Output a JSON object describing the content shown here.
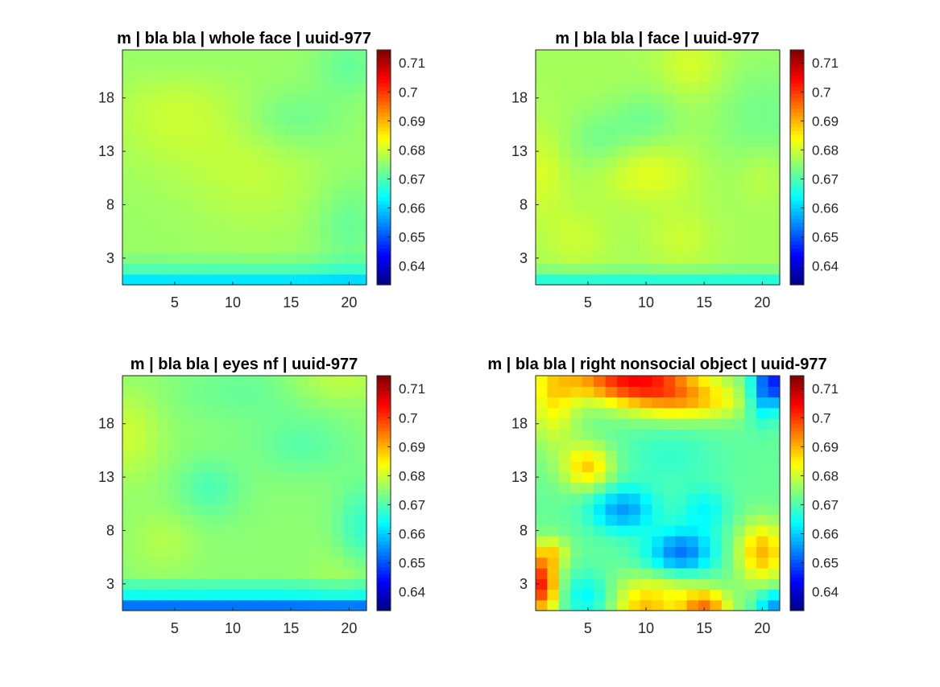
{
  "chart_data": [
    {
      "type": "heatmap",
      "title": "m | bla bla | whole face | uuid-977",
      "x": [
        1,
        21
      ],
      "y": [
        1,
        22
      ],
      "xticks": [
        5,
        10,
        15,
        20
      ],
      "yticks": [
        3,
        8,
        13,
        18
      ],
      "clim": [
        0.6335,
        0.7145
      ],
      "colorbar_ticks": [
        0.64,
        0.65,
        0.66,
        0.67,
        0.68,
        0.69,
        0.7,
        0.71
      ],
      "colormap": "jet",
      "field": {
        "base": 0.676,
        "bumps": [
          {
            "x": 5,
            "y": 17,
            "sx": 4,
            "sy": 4,
            "a": 0.004
          },
          {
            "x": 12,
            "y": 11,
            "sx": 4,
            "sy": 4,
            "a": 0.003
          },
          {
            "x": 15,
            "y": 16,
            "sx": 3,
            "sy": 2,
            "a": -0.004
          },
          {
            "x": 20,
            "y": 21,
            "sx": 2,
            "sy": 2,
            "a": -0.004
          },
          {
            "x": 20,
            "y": 6,
            "sx": 2,
            "sy": 3,
            "a": -0.004
          },
          {
            "x": 5,
            "y": 21,
            "sx": 4,
            "sy": 2,
            "a": -0.002
          }
        ],
        "row_offsets": [
          {
            "y": 1,
            "v": -0.014
          },
          {
            "y": 2,
            "v": -0.006
          },
          {
            "y": 3,
            "v": -0.002
          }
        ]
      }
    },
    {
      "type": "heatmap",
      "title": "m | bla bla | face | uuid-977",
      "x": [
        1,
        21
      ],
      "y": [
        1,
        22
      ],
      "xticks": [
        5,
        10,
        15,
        20
      ],
      "yticks": [
        3,
        8,
        13,
        18
      ],
      "clim": [
        0.6335,
        0.7145
      ],
      "colorbar_ticks": [
        0.64,
        0.65,
        0.66,
        0.67,
        0.68,
        0.69,
        0.7,
        0.71
      ],
      "colormap": "jet",
      "field": {
        "base": 0.677,
        "bumps": [
          {
            "x": 10,
            "y": 11,
            "sx": 3,
            "sy": 2,
            "a": 0.005
          },
          {
            "x": 1,
            "y": 11,
            "sx": 1.5,
            "sy": 3,
            "a": 0.004
          },
          {
            "x": 6,
            "y": 14,
            "sx": 2,
            "sy": 2,
            "a": -0.004
          },
          {
            "x": 10,
            "y": 16,
            "sx": 2,
            "sy": 2,
            "a": -0.004
          },
          {
            "x": 14,
            "y": 21,
            "sx": 2,
            "sy": 2,
            "a": 0.004
          },
          {
            "x": 20,
            "y": 16,
            "sx": 3,
            "sy": 4,
            "a": -0.004
          },
          {
            "x": 4,
            "y": 5,
            "sx": 2,
            "sy": 2,
            "a": 0.003
          },
          {
            "x": 13,
            "y": 5,
            "sx": 2,
            "sy": 2,
            "a": 0.003
          },
          {
            "x": 20,
            "y": 11,
            "sx": 1.5,
            "sy": 2,
            "a": 0.003
          }
        ],
        "row_offsets": [
          {
            "y": 1,
            "v": -0.01
          },
          {
            "y": 2,
            "v": -0.003
          }
        ]
      }
    },
    {
      "type": "heatmap",
      "title": "m | bla bla | eyes nf | uuid-977",
      "x": [
        1,
        21
      ],
      "y": [
        1,
        22
      ],
      "xticks": [
        5,
        10,
        15,
        20
      ],
      "yticks": [
        3,
        8,
        13,
        18
      ],
      "clim": [
        0.6335,
        0.7145
      ],
      "colorbar_ticks": [
        0.64,
        0.65,
        0.66,
        0.67,
        0.68,
        0.69,
        0.7,
        0.71
      ],
      "colormap": "jet",
      "field": {
        "base": 0.675,
        "bumps": [
          {
            "x": 1,
            "y": 17,
            "sx": 2,
            "sy": 3,
            "a": 0.005
          },
          {
            "x": 8,
            "y": 12,
            "sx": 2,
            "sy": 2,
            "a": -0.005
          },
          {
            "x": 16,
            "y": 16,
            "sx": 3,
            "sy": 2,
            "a": -0.004
          },
          {
            "x": 11,
            "y": 21,
            "sx": 4,
            "sy": 2,
            "a": -0.003
          },
          {
            "x": 19,
            "y": 22,
            "sx": 3,
            "sy": 1.5,
            "a": 0.004
          },
          {
            "x": 21,
            "y": 8,
            "sx": 1.5,
            "sy": 3,
            "a": -0.007
          },
          {
            "x": 20,
            "y": 4,
            "sx": 2,
            "sy": 2,
            "a": 0.003
          },
          {
            "x": 4,
            "y": 7,
            "sx": 2,
            "sy": 2,
            "a": 0.003
          }
        ],
        "row_offsets": [
          {
            "y": 1,
            "v": -0.022
          },
          {
            "y": 2,
            "v": -0.01
          },
          {
            "y": 3,
            "v": -0.005
          }
        ]
      }
    },
    {
      "type": "heatmap",
      "title": "m | bla bla | right nonsocial object | uuid-977",
      "x": [
        1,
        21
      ],
      "y": [
        1,
        22
      ],
      "xticks": [
        5,
        10,
        15,
        20
      ],
      "yticks": [
        3,
        8,
        13,
        18
      ],
      "clim": [
        0.6335,
        0.7145
      ],
      "colorbar_ticks": [
        0.64,
        0.65,
        0.66,
        0.67,
        0.68,
        0.69,
        0.7,
        0.71
      ],
      "colormap": "jet",
      "field": {
        "base": 0.672,
        "bumps": [
          {
            "x": 9,
            "y": 22,
            "sx": 4,
            "sy": 1.2,
            "a": 0.03
          },
          {
            "x": 13,
            "y": 20,
            "sx": 4,
            "sy": 1.2,
            "a": 0.016
          },
          {
            "x": 2,
            "y": 20,
            "sx": 1.5,
            "sy": 3,
            "a": 0.012
          },
          {
            "x": 21,
            "y": 22,
            "sx": 1.2,
            "sy": 1.5,
            "a": -0.024
          },
          {
            "x": 20,
            "y": 20,
            "sx": 1,
            "sy": 1.5,
            "a": -0.01
          },
          {
            "x": 5,
            "y": 14,
            "sx": 1.5,
            "sy": 1.5,
            "a": 0.016
          },
          {
            "x": 8,
            "y": 10,
            "sx": 2,
            "sy": 1.5,
            "a": -0.016
          },
          {
            "x": 13,
            "y": 6,
            "sx": 2,
            "sy": 1.5,
            "a": -0.019
          },
          {
            "x": 15,
            "y": 10,
            "sx": 1.5,
            "sy": 1.5,
            "a": -0.008
          },
          {
            "x": 20,
            "y": 6,
            "sx": 1.5,
            "sy": 2,
            "a": 0.018
          },
          {
            "x": 1,
            "y": 3,
            "sx": 1,
            "sy": 2,
            "a": 0.03
          },
          {
            "x": 10,
            "y": 1,
            "sx": 2,
            "sy": 1,
            "a": 0.016
          },
          {
            "x": 15,
            "y": 1,
            "sx": 1.5,
            "sy": 1,
            "a": 0.022
          },
          {
            "x": 11,
            "y": 3,
            "sx": 3,
            "sy": 1,
            "a": 0.008
          },
          {
            "x": 5,
            "y": 2,
            "sx": 1.5,
            "sy": 1.5,
            "a": -0.009
          },
          {
            "x": 21,
            "y": 1,
            "sx": 1,
            "sy": 1,
            "a": -0.016
          },
          {
            "x": 2,
            "y": 6,
            "sx": 1,
            "sy": 1,
            "a": 0.01
          },
          {
            "x": 12,
            "y": 15,
            "sx": 3,
            "sy": 2,
            "a": -0.004
          }
        ],
        "row_offsets": []
      }
    }
  ]
}
